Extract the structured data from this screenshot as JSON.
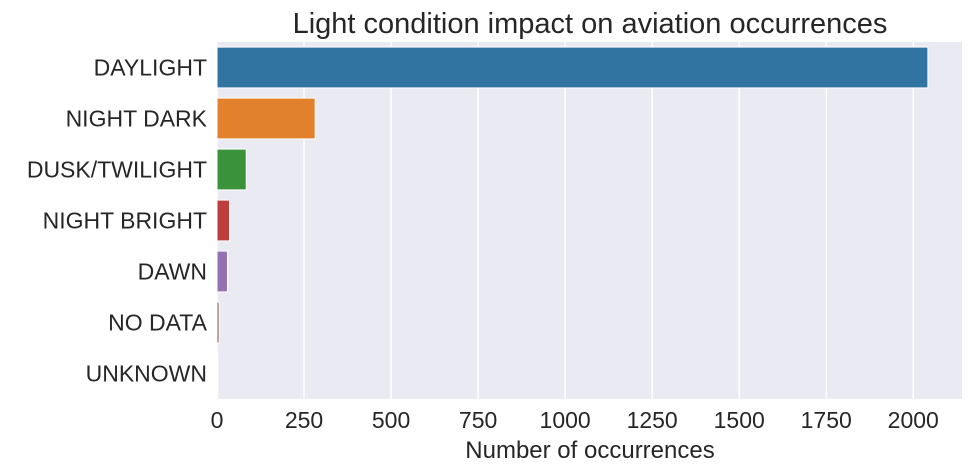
{
  "chart_data": {
    "type": "bar",
    "orientation": "horizontal",
    "title": "Light condition impact on aviation occurrences",
    "xlabel": "Number of occurrences",
    "ylabel": "",
    "categories": [
      "DAYLIGHT",
      "NIGHT DARK",
      "DUSK/TWILIGHT",
      "NIGHT BRIGHT",
      "DAWN",
      "NO DATA",
      "UNKNOWN"
    ],
    "values": [
      2042,
      282,
      84,
      36,
      30,
      6,
      2
    ],
    "colors": [
      "#3274a1",
      "#e1812c",
      "#3a923a",
      "#c03d3e",
      "#9372b2",
      "#845b53",
      "#d684bd"
    ],
    "xlim": [
      0,
      2140
    ],
    "xticks": [
      0,
      250,
      500,
      750,
      1000,
      1250,
      1500,
      1750,
      2000
    ],
    "grid": true,
    "background": "#eaeaf2",
    "grid_color": "#ffffff"
  }
}
